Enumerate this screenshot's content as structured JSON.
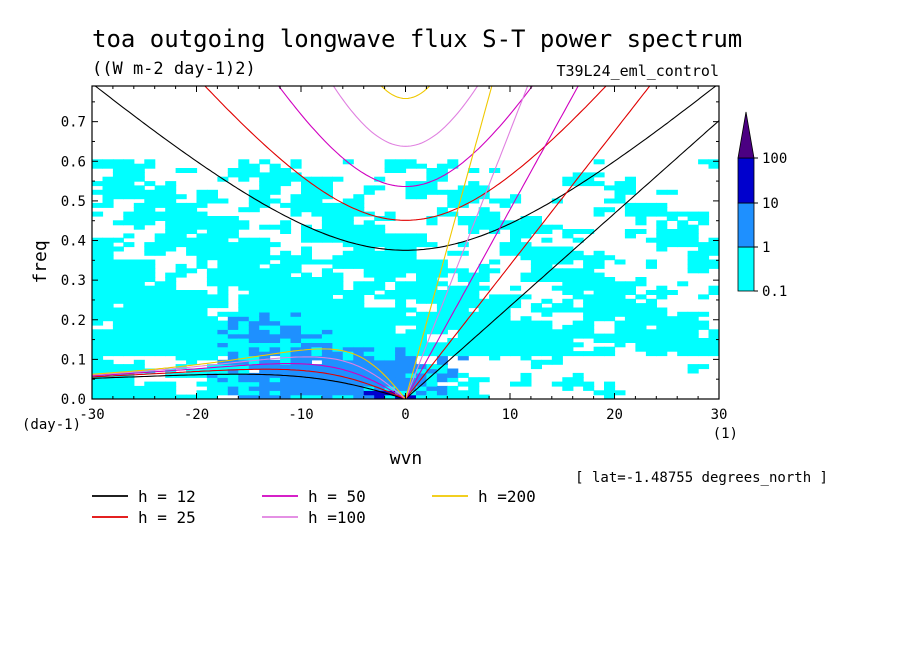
{
  "chart_data": {
    "type": "heatmap",
    "title": "toa outgoing longwave flux S-T power spectrum",
    "units": "((W m-2 day-1)2)",
    "dataset": "T39L24_eml_control",
    "xlabel": "wvn",
    "ylabel": "freq",
    "x_unit": "(1)",
    "y_unit": "(day-1)",
    "xlim": [
      -30,
      30
    ],
    "ylim": [
      0,
      0.79
    ],
    "x_ticks": [
      "-30",
      "-20",
      "-10",
      "0",
      "10",
      "20",
      "30"
    ],
    "x_tick_values": [
      -30,
      -20,
      -10,
      0,
      10,
      20,
      30
    ],
    "y_ticks": [
      "0.0",
      "0.1",
      "0.2",
      "0.3",
      "0.4",
      "0.5",
      "0.6",
      "0.7"
    ],
    "y_tick_values": [
      0,
      0.1,
      0.2,
      0.3,
      0.4,
      0.5,
      0.6,
      0.7
    ],
    "footnote": "[ lat=-1.48755 degrees_north ]",
    "colorbar": {
      "levels": [
        "0.1",
        "1",
        "10",
        "100"
      ],
      "colors": [
        "#00ffff",
        "#1e90ff",
        "#0000cd",
        "#4b0082"
      ]
    },
    "dispersion_curves": [
      {
        "label": "h = 12",
        "equivalent_depth": 12,
        "color": "#000000"
      },
      {
        "label": "h = 25",
        "equivalent_depth": 25,
        "color": "#e00000"
      },
      {
        "label": "h = 50",
        "equivalent_depth": 50,
        "color": "#d000c0"
      },
      {
        "label": "h =100",
        "equivalent_depth": 100,
        "color": "#e080e0"
      },
      {
        "label": "h =200",
        "equivalent_depth": 200,
        "color": "#f0c800"
      }
    ],
    "shading_regions": [
      {
        "level": 1,
        "x_range": [
          -30,
          30
        ],
        "freq_range": [
          0.15,
          0.56
        ],
        "coverage": "patchy"
      },
      {
        "level": 1,
        "x_range": [
          -30,
          12
        ],
        "freq_range": [
          0,
          0.2
        ],
        "coverage": "continuous"
      },
      {
        "level": 2,
        "x_range": [
          -22,
          6
        ],
        "freq_range": [
          0,
          0.3
        ],
        "coverage": "blobs"
      },
      {
        "level": 3,
        "x_range": [
          -4,
          1
        ],
        "freq_range": [
          0,
          0.03
        ],
        "coverage": "small"
      }
    ]
  }
}
